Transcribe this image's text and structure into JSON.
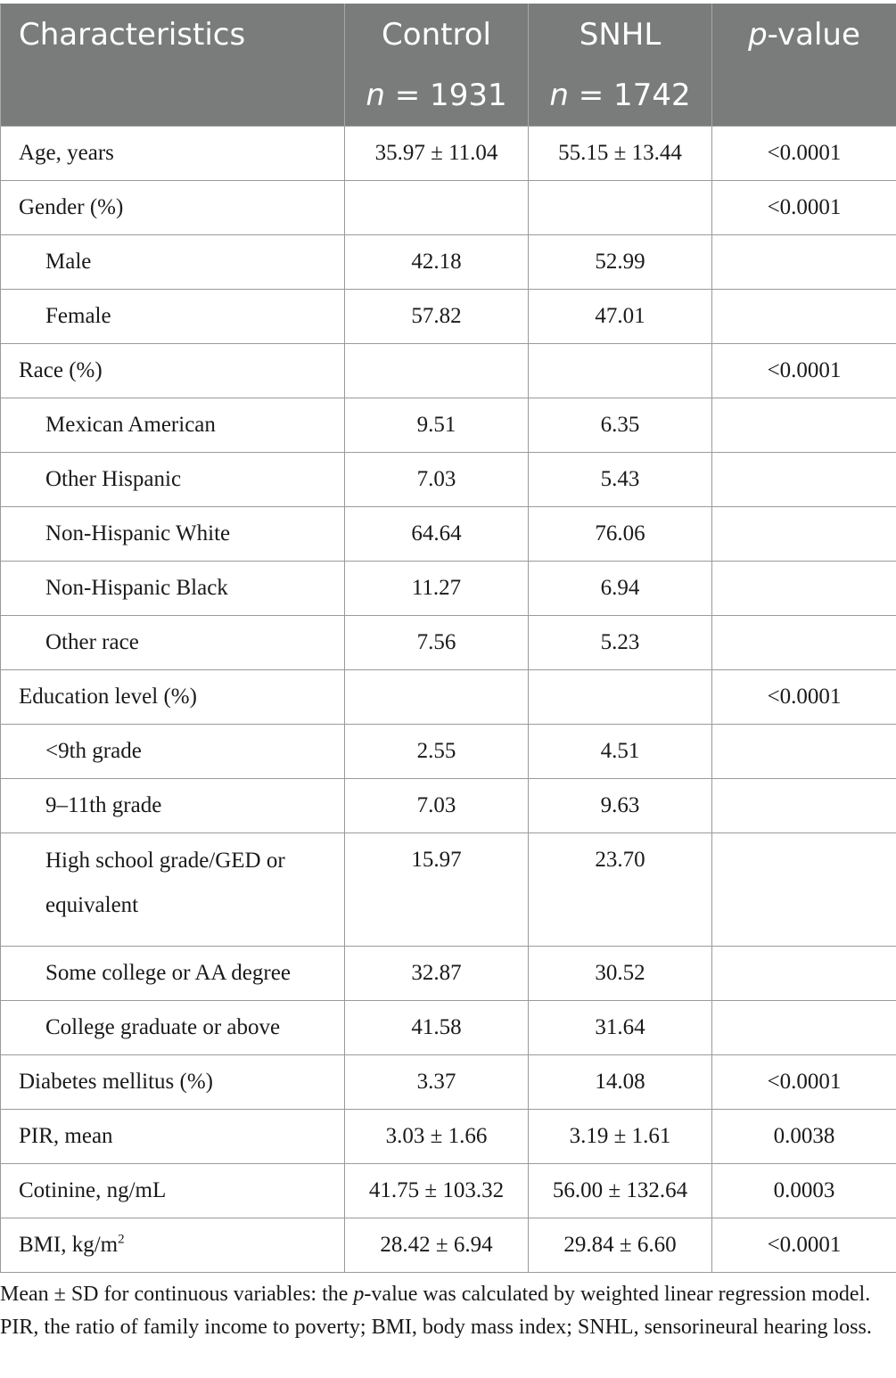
{
  "header": {
    "characteristics": "Characteristics",
    "control": "Control",
    "snhl": "SNHL",
    "pvalue_italic": "p",
    "pvalue_rest": "-value",
    "n_label": "n",
    "control_n": "= 1931",
    "snhl_n": "= 1742"
  },
  "rows": [
    {
      "label": "Age, years",
      "control": "35.97 ± 11.04",
      "snhl": "55.15 ± 13.44",
      "p": "<0.0001"
    },
    {
      "label": "Gender (%)",
      "control": "",
      "snhl": "",
      "p": "<0.0001"
    },
    {
      "label": "Male",
      "control": "42.18",
      "snhl": "52.99",
      "p": ""
    },
    {
      "label": "Female",
      "control": "57.82",
      "snhl": "47.01",
      "p": ""
    },
    {
      "label": "Race (%)",
      "control": "",
      "snhl": "",
      "p": "<0.0001"
    },
    {
      "label": "Mexican American",
      "control": "9.51",
      "snhl": "6.35",
      "p": ""
    },
    {
      "label": "Other Hispanic",
      "control": "7.03",
      "snhl": "5.43",
      "p": ""
    },
    {
      "label": "Non-Hispanic White",
      "control": "64.64",
      "snhl": "76.06",
      "p": ""
    },
    {
      "label": "Non-Hispanic Black",
      "control": "11.27",
      "snhl": "6.94",
      "p": ""
    },
    {
      "label": "Other race",
      "control": "7.56",
      "snhl": "5.23",
      "p": ""
    },
    {
      "label": "Education level (%)",
      "control": "",
      "snhl": "",
      "p": "<0.0001"
    },
    {
      "label": "<9th grade",
      "control": "2.55",
      "snhl": "4.51",
      "p": ""
    },
    {
      "label": "9–11th grade",
      "control": "7.03",
      "snhl": "9.63",
      "p": ""
    },
    {
      "label_line1": "High school grade/GED or",
      "label_line2": "equivalent",
      "control": "15.97",
      "snhl": "23.70",
      "p": ""
    },
    {
      "label": "Some college or AA degree",
      "control": "32.87",
      "snhl": "30.52",
      "p": ""
    },
    {
      "label": "College graduate or above",
      "control": "41.58",
      "snhl": "31.64",
      "p": ""
    },
    {
      "label": "Diabetes mellitus (%)",
      "control": "3.37",
      "snhl": "14.08",
      "p": "<0.0001"
    },
    {
      "label": "PIR, mean",
      "control": "3.03 ± 1.66",
      "snhl": "3.19 ± 1.61",
      "p": "0.0038"
    },
    {
      "label": "Cotinine, ng/mL",
      "control": "41.75 ± 103.32",
      "snhl": "56.00 ± 132.64",
      "p": "0.0003"
    },
    {
      "label": "BMI, kg/m",
      "label_sup": "2",
      "control": "28.42 ± 6.94",
      "snhl": "29.84 ± 6.60",
      "p": "<0.0001"
    }
  ],
  "footnote": {
    "part1": "Mean ± SD for continuous variables: the ",
    "italic_p": "p",
    "part2": "-value was calculated by weighted linear regression model. PIR, the ratio of family income to poverty; BMI, body mass index; SNHL, sensorineural hearing loss."
  }
}
